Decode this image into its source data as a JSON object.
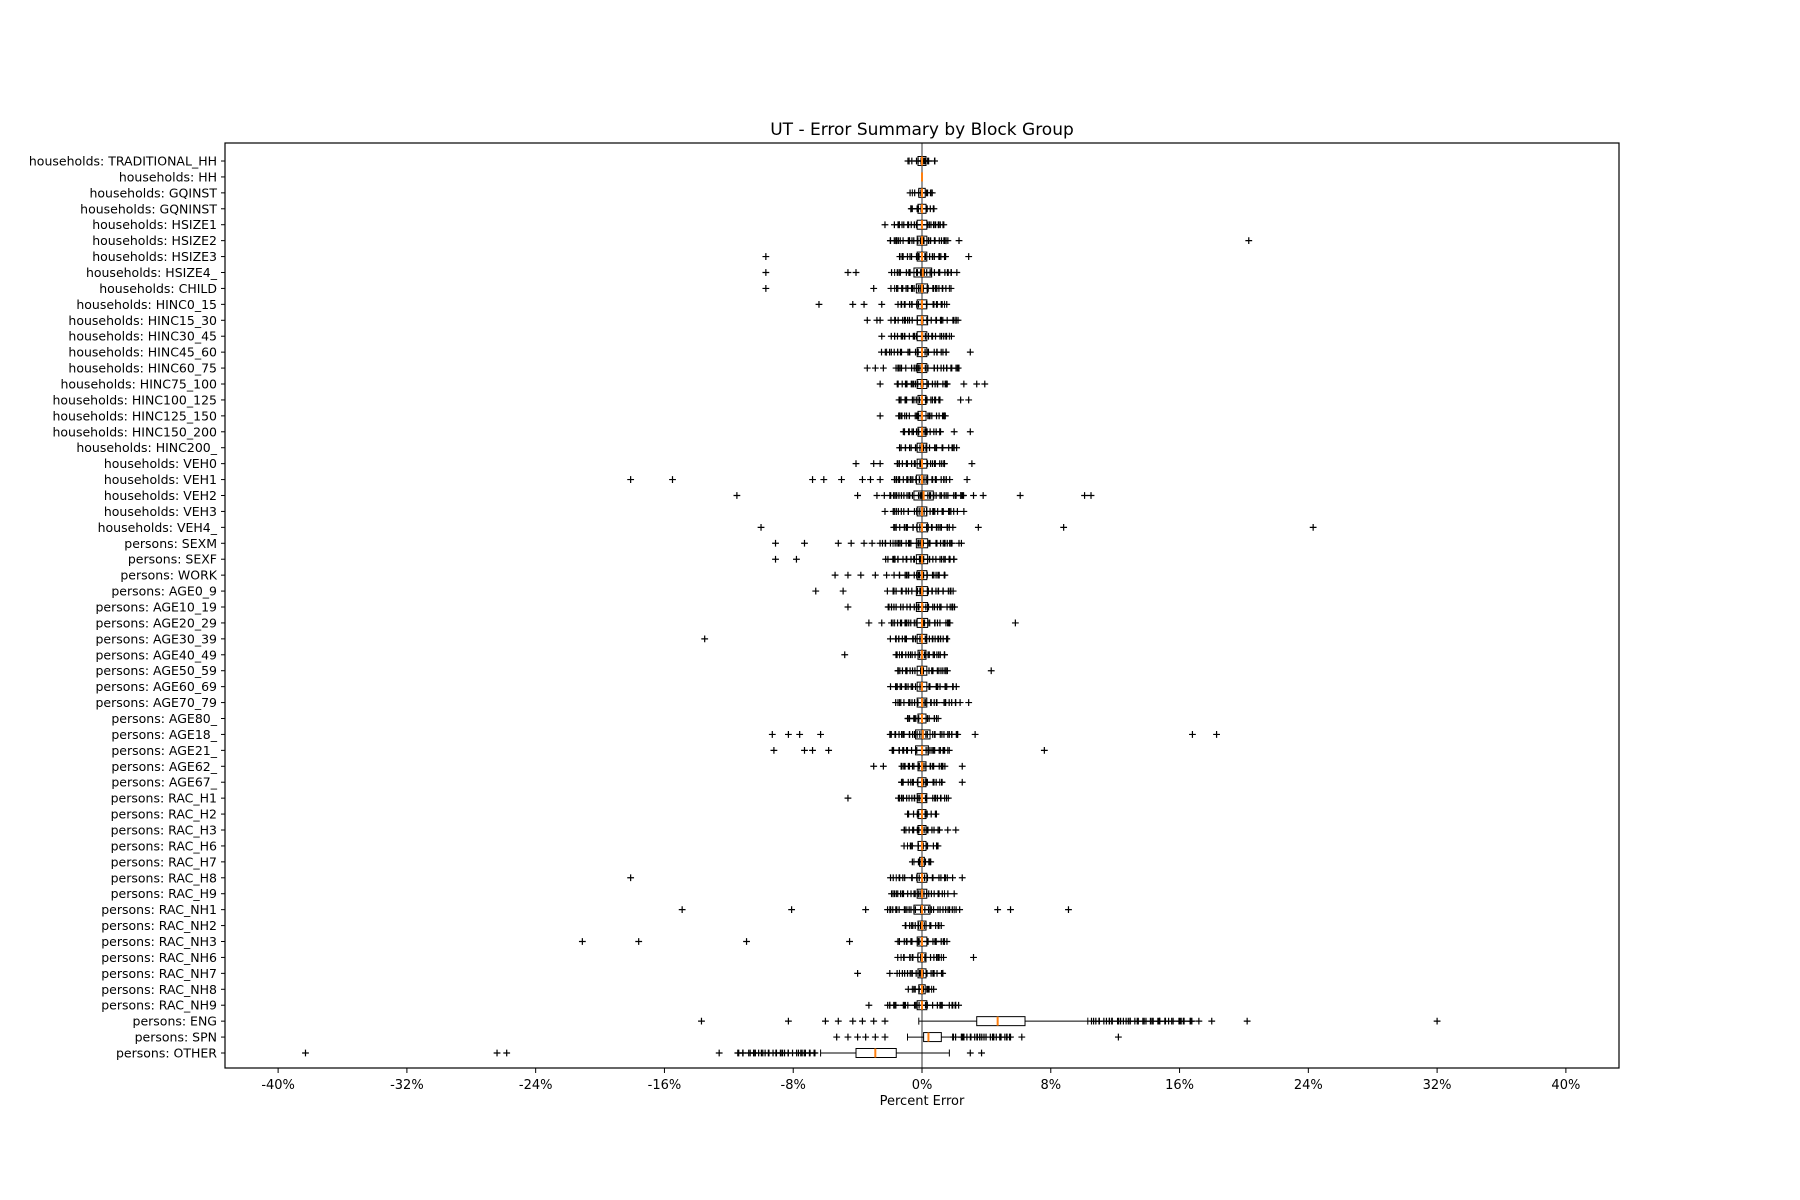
{
  "chart_data": {
    "type": "boxplot",
    "orientation": "horizontal",
    "title": "UT - Error Summary by Block Group",
    "xlabel": "Percent Error",
    "ylabel": "",
    "xlim": [
      -43.3,
      43.3
    ],
    "xticks": [
      -40,
      -32,
      -24,
      -16,
      -8,
      0,
      8,
      16,
      24,
      32,
      40
    ],
    "xtick_labels": [
      "-40%",
      "-32%",
      "-24%",
      "-16%",
      "-8%",
      "0%",
      "8%",
      "16%",
      "24%",
      "32%",
      "40%"
    ],
    "grid": false,
    "zero_line": 0,
    "colors": {
      "median": "#ff7f0e",
      "box": "#000000",
      "flier": "#000000",
      "zero_line": "#333333",
      "frame": "#000000"
    },
    "legend": null,
    "units": "percent error",
    "rows": [
      {
        "label": "households: TRADITIONAL_HH",
        "q1": -0.25,
        "med": 0,
        "q3": 0.25,
        "lo": -0.8,
        "hi": 0.8,
        "band": [
          -0.7,
          0.7,
          12
        ],
        "fliers": []
      },
      {
        "label": "households: HH",
        "q1": 0,
        "med": 0,
        "q3": 0,
        "lo": 0,
        "hi": 0,
        "band": null,
        "fliers": []
      },
      {
        "label": "households: GQINST",
        "q1": -0.2,
        "med": 0,
        "q3": 0.2,
        "lo": -0.6,
        "hi": 0.6,
        "band": [
          -0.6,
          0.6,
          9
        ],
        "fliers": []
      },
      {
        "label": "households: GQNINST",
        "q1": -0.25,
        "med": 0,
        "q3": 0.25,
        "lo": -0.7,
        "hi": 0.7,
        "band": [
          -0.7,
          0.7,
          10
        ],
        "fliers": []
      },
      {
        "label": "households: HSIZE1",
        "q1": -0.3,
        "med": 0,
        "q3": 0.3,
        "lo": -1.4,
        "hi": 1.3,
        "band": [
          -1.6,
          1.4,
          24
        ],
        "fliers": [
          -2.3
        ]
      },
      {
        "label": "households: HSIZE2",
        "q1": -0.3,
        "med": 0,
        "q3": 0.3,
        "lo": -1.6,
        "hi": 1.5,
        "band": [
          -2.0,
          1.6,
          28
        ],
        "fliers": [
          2.3,
          20.3
        ]
      },
      {
        "label": "households: HSIZE3",
        "q1": -0.3,
        "med": 0,
        "q3": 0.3,
        "lo": -1.4,
        "hi": 1.4,
        "band": [
          -1.5,
          1.5,
          22
        ],
        "fliers": [
          -9.7,
          2.9
        ]
      },
      {
        "label": "households: HSIZE4_",
        "q1": -0.5,
        "med": 0.05,
        "q3": 0.6,
        "lo": -1.7,
        "hi": 1.8,
        "band": [
          -1.8,
          2.0,
          24
        ],
        "fliers": [
          -9.7,
          -4.6,
          -4.1
        ]
      },
      {
        "label": "households: CHILD",
        "q1": -0.35,
        "med": 0,
        "q3": 0.35,
        "lo": -1.7,
        "hi": 1.7,
        "band": [
          -1.8,
          1.7,
          26
        ],
        "fliers": [
          -9.7,
          -3.0
        ]
      },
      {
        "label": "households: HINC0_15",
        "q1": -0.3,
        "med": 0,
        "q3": 0.3,
        "lo": -1.3,
        "hi": 1.4,
        "band": [
          -1.4,
          1.5,
          20
        ],
        "fliers": [
          -6.4,
          -4.3,
          -3.6,
          -2.5
        ]
      },
      {
        "label": "households: HINC15_30",
        "q1": -0.3,
        "med": 0,
        "q3": 0.35,
        "lo": -1.7,
        "hi": 2.1,
        "band": [
          -1.8,
          2.2,
          28
        ],
        "fliers": [
          -3.4,
          -2.8,
          -2.6
        ]
      },
      {
        "label": "households: HINC30_45",
        "q1": -0.3,
        "med": 0,
        "q3": 0.3,
        "lo": -1.7,
        "hi": 1.7,
        "band": [
          -1.8,
          1.8,
          26
        ],
        "fliers": [
          -2.5
        ]
      },
      {
        "label": "households: HINC45_60",
        "q1": -0.3,
        "med": 0,
        "q3": 0.3,
        "lo": -2.2,
        "hi": 1.5,
        "band": [
          -2.4,
          1.6,
          26
        ],
        "fliers": [
          3.0
        ]
      },
      {
        "label": "households: HINC60_75",
        "q1": -0.3,
        "med": 0,
        "q3": 0.3,
        "lo": -1.5,
        "hi": 2.3,
        "band": [
          -1.6,
          2.4,
          26
        ],
        "fliers": [
          -3.4,
          -2.9,
          -2.4
        ]
      },
      {
        "label": "households: HINC75_100",
        "q1": -0.3,
        "med": 0,
        "q3": 0.3,
        "lo": -1.5,
        "hi": 1.5,
        "band": [
          -1.6,
          1.6,
          24
        ],
        "fliers": [
          -2.6,
          2.6,
          3.4,
          3.9
        ]
      },
      {
        "label": "households: HINC100_125",
        "q1": -0.25,
        "med": 0,
        "q3": 0.25,
        "lo": -1.3,
        "hi": 1.1,
        "band": [
          -1.5,
          1.2,
          18
        ],
        "fliers": [
          2.4,
          2.9
        ]
      },
      {
        "label": "households: HINC125_150",
        "q1": -0.25,
        "med": 0,
        "q3": 0.25,
        "lo": -1.4,
        "hi": 1.4,
        "band": [
          -1.5,
          1.5,
          20
        ],
        "fliers": [
          -2.6
        ]
      },
      {
        "label": "households: HINC150_200",
        "q1": -0.25,
        "med": 0,
        "q3": 0.25,
        "lo": -1.1,
        "hi": 1.1,
        "band": [
          -1.2,
          1.2,
          16
        ],
        "fliers": [
          2.0,
          3.0
        ]
      },
      {
        "label": "households: HINC200_",
        "q1": -0.3,
        "med": 0,
        "q3": 0.3,
        "lo": -1.4,
        "hi": 2.0,
        "band": [
          -1.5,
          2.1,
          22
        ],
        "fliers": []
      },
      {
        "label": "households: VEH0",
        "q1": -0.3,
        "med": 0,
        "q3": 0.3,
        "lo": -1.4,
        "hi": 1.4,
        "band": [
          -1.5,
          1.5,
          20
        ],
        "fliers": [
          -4.1,
          -3.0,
          -2.6,
          3.1
        ]
      },
      {
        "label": "households: VEH1",
        "q1": -0.35,
        "med": 0,
        "q3": 0.35,
        "lo": -1.6,
        "hi": 1.5,
        "band": [
          -1.8,
          1.6,
          28
        ],
        "fliers": [
          -18.1,
          -15.5,
          -6.8,
          -6.1,
          -5.0,
          -3.7,
          -3.2,
          -2.6,
          2.8
        ]
      },
      {
        "label": "households: VEH2",
        "q1": -0.5,
        "med": 0.1,
        "q3": 0.7,
        "lo": -2.0,
        "hi": 2.4,
        "band": [
          -2.2,
          2.6,
          32
        ],
        "fliers": [
          -11.5,
          -4.0,
          -2.8,
          3.2,
          3.8,
          6.1,
          10.1,
          10.5
        ]
      },
      {
        "label": "households: VEH3",
        "q1": -0.3,
        "med": 0,
        "q3": 0.3,
        "lo": -1.6,
        "hi": 1.8,
        "band": [
          -1.8,
          1.9,
          26
        ],
        "fliers": [
          -2.3,
          2.2,
          2.6
        ]
      },
      {
        "label": "households: VEH4_",
        "q1": -0.3,
        "med": 0,
        "q3": 0.35,
        "lo": -1.6,
        "hi": 1.7,
        "band": [
          -1.7,
          1.8,
          24
        ],
        "fliers": [
          -10.0,
          3.5,
          8.8,
          24.3
        ]
      },
      {
        "label": "persons: SEXM",
        "q1": -0.35,
        "med": 0,
        "q3": 0.35,
        "lo": -1.8,
        "hi": 1.8,
        "band": [
          -2.6,
          2.3,
          32
        ],
        "fliers": [
          -9.1,
          -7.3,
          -5.2,
          -4.4,
          -3.6,
          -3.1
        ]
      },
      {
        "label": "persons: SEXF",
        "q1": -0.35,
        "med": 0,
        "q3": 0.35,
        "lo": -1.7,
        "hi": 1.7,
        "band": [
          -2.2,
          2.0,
          30
        ],
        "fliers": [
          -9.1,
          -7.8
        ]
      },
      {
        "label": "persons: WORK",
        "q1": -0.3,
        "med": 0,
        "q3": 0.3,
        "lo": -1.4,
        "hi": 1.4,
        "band": [
          -1.6,
          1.5,
          22
        ],
        "fliers": [
          -5.4,
          -4.6,
          -3.8,
          -2.9,
          -2.2
        ]
      },
      {
        "label": "persons: AGE0_9",
        "q1": -0.35,
        "med": 0,
        "q3": 0.35,
        "lo": -1.8,
        "hi": 1.8,
        "band": [
          -2.0,
          1.9,
          26
        ],
        "fliers": [
          -6.6,
          -4.9
        ]
      },
      {
        "label": "persons: AGE10_19",
        "q1": -0.35,
        "med": 0,
        "q3": 0.35,
        "lo": -1.9,
        "hi": 1.9,
        "band": [
          -2.1,
          2.1,
          28
        ],
        "fliers": [
          -4.6
        ]
      },
      {
        "label": "persons: AGE20_29",
        "q1": -0.3,
        "med": 0,
        "q3": 0.35,
        "lo": -1.7,
        "hi": 1.7,
        "band": [
          -1.9,
          1.8,
          26
        ],
        "fliers": [
          -3.3,
          -2.5,
          5.8
        ]
      },
      {
        "label": "persons: AGE30_39",
        "q1": -0.3,
        "med": 0,
        "q3": 0.3,
        "lo": -1.6,
        "hi": 1.6,
        "band": [
          -1.8,
          1.7,
          26
        ],
        "fliers": [
          -13.5
        ]
      },
      {
        "label": "persons: AGE40_49",
        "q1": -0.25,
        "med": 0,
        "q3": 0.25,
        "lo": -1.4,
        "hi": 1.4,
        "band": [
          -1.6,
          1.5,
          22
        ],
        "fliers": [
          -4.8
        ]
      },
      {
        "label": "persons: AGE50_59",
        "q1": -0.3,
        "med": 0,
        "q3": 0.3,
        "lo": -1.5,
        "hi": 1.5,
        "band": [
          -1.6,
          1.6,
          24
        ],
        "fliers": [
          4.3
        ]
      },
      {
        "label": "persons: AGE60_69",
        "q1": -0.3,
        "med": 0,
        "q3": 0.3,
        "lo": -1.6,
        "hi": 1.9,
        "band": [
          -1.8,
          2.0,
          26
        ],
        "fliers": []
      },
      {
        "label": "persons: AGE70_79",
        "q1": -0.3,
        "med": 0,
        "q3": 0.3,
        "lo": -1.4,
        "hi": 2.1,
        "band": [
          -1.5,
          2.2,
          24
        ],
        "fliers": [
          2.9
        ]
      },
      {
        "label": "persons: AGE80_",
        "q1": -0.25,
        "med": 0,
        "q3": 0.25,
        "lo": -0.9,
        "hi": 0.9,
        "band": [
          -1.0,
          1.0,
          14
        ],
        "fliers": []
      },
      {
        "label": "persons: AGE18_",
        "q1": -0.4,
        "med": 0.05,
        "q3": 0.5,
        "lo": -2.0,
        "hi": 2.2,
        "band": [
          -2.1,
          2.3,
          30
        ],
        "fliers": [
          -9.3,
          -8.3,
          -7.6,
          -6.3,
          3.3,
          16.8,
          18.3
        ]
      },
      {
        "label": "persons: AGE21_",
        "q1": -0.4,
        "med": 0,
        "q3": 0.4,
        "lo": -1.8,
        "hi": 1.6,
        "band": [
          -1.9,
          1.7,
          26
        ],
        "fliers": [
          -9.2,
          -7.3,
          -6.8,
          -5.8,
          7.6
        ]
      },
      {
        "label": "persons: AGE62_",
        "q1": -0.25,
        "med": 0,
        "q3": 0.25,
        "lo": -1.3,
        "hi": 1.3,
        "band": [
          -1.4,
          1.4,
          20
        ],
        "fliers": [
          -3.0,
          -2.4,
          2.5
        ]
      },
      {
        "label": "persons: AGE67_",
        "q1": -0.25,
        "med": 0,
        "q3": 0.25,
        "lo": -1.2,
        "hi": 1.1,
        "band": [
          -1.3,
          1.2,
          18
        ],
        "fliers": [
          2.5
        ]
      },
      {
        "label": "persons: RAC_H1",
        "q1": -0.3,
        "med": 0,
        "q3": 0.3,
        "lo": -1.4,
        "hi": 1.4,
        "band": [
          -1.5,
          1.5,
          22
        ],
        "fliers": [
          -4.6
        ]
      },
      {
        "label": "persons: RAC_H2",
        "q1": -0.25,
        "med": 0,
        "q3": 0.25,
        "lo": -0.9,
        "hi": 0.9,
        "band": [
          -1.0,
          1.0,
          12
        ],
        "fliers": []
      },
      {
        "label": "persons: RAC_H3",
        "q1": -0.25,
        "med": 0,
        "q3": 0.25,
        "lo": -1.0,
        "hi": 1.0,
        "band": [
          -1.1,
          1.1,
          14
        ],
        "fliers": [
          1.6,
          2.1
        ]
      },
      {
        "label": "persons: RAC_H6",
        "q1": -0.25,
        "med": 0,
        "q3": 0.25,
        "lo": -0.9,
        "hi": 0.9,
        "band": [
          -1.0,
          1.0,
          12
        ],
        "fliers": []
      },
      {
        "label": "persons: RAC_H7",
        "q1": -0.15,
        "med": 0,
        "q3": 0.15,
        "lo": -0.5,
        "hi": 0.5,
        "band": [
          -0.5,
          0.5,
          8
        ],
        "fliers": []
      },
      {
        "label": "persons: RAC_H8",
        "q1": -0.3,
        "med": 0,
        "q3": 0.3,
        "lo": -1.6,
        "hi": 1.4,
        "band": [
          -1.8,
          1.5,
          20
        ],
        "fliers": [
          -18.1,
          1.9,
          2.5
        ]
      },
      {
        "label": "persons: RAC_H9",
        "q1": -0.3,
        "med": 0,
        "q3": 0.3,
        "lo": -1.8,
        "hi": 1.4,
        "band": [
          -2.0,
          1.5,
          22
        ],
        "fliers": [
          2.0
        ]
      },
      {
        "label": "persons: RAC_NH1",
        "q1": -0.5,
        "med": 0,
        "q3": 0.5,
        "lo": -2.0,
        "hi": 2.0,
        "band": [
          -2.2,
          2.2,
          28
        ],
        "fliers": [
          -14.9,
          -8.1,
          -3.5,
          4.7,
          5.5,
          9.1
        ]
      },
      {
        "label": "persons: RAC_NH2",
        "q1": -0.25,
        "med": 0,
        "q3": 0.25,
        "lo": -1.0,
        "hi": 1.0,
        "band": [
          -1.1,
          1.1,
          14
        ],
        "fliers": []
      },
      {
        "label": "persons: RAC_NH3",
        "q1": -0.3,
        "med": 0,
        "q3": 0.3,
        "lo": -1.4,
        "hi": 1.4,
        "band": [
          -1.5,
          1.5,
          20
        ],
        "fliers": [
          -21.1,
          -17.6,
          -10.9,
          -4.5
        ]
      },
      {
        "label": "persons: RAC_NH6",
        "q1": -0.25,
        "med": 0,
        "q3": 0.25,
        "lo": -1.3,
        "hi": 1.2,
        "band": [
          -1.4,
          1.3,
          18
        ],
        "fliers": [
          3.2
        ]
      },
      {
        "label": "persons: RAC_NH7",
        "q1": -0.25,
        "med": 0,
        "q3": 0.25,
        "lo": -1.4,
        "hi": 1.3,
        "band": [
          -1.5,
          1.4,
          18
        ],
        "fliers": [
          -4.0,
          -2.0
        ]
      },
      {
        "label": "persons: RAC_NH8",
        "q1": -0.2,
        "med": 0,
        "q3": 0.2,
        "lo": -0.6,
        "hi": 0.6,
        "band": [
          -0.7,
          0.7,
          10
        ],
        "fliers": []
      },
      {
        "label": "persons: RAC_NH9",
        "q1": -0.3,
        "med": 0,
        "q3": 0.3,
        "lo": -2.0,
        "hi": 2.1,
        "band": [
          -2.2,
          2.3,
          26
        ],
        "fliers": [
          -3.3
        ]
      },
      {
        "label": "persons: ENG",
        "q1": 3.4,
        "med": 4.7,
        "q3": 6.4,
        "lo": -0.2,
        "hi": 10.3,
        "band": [
          10.5,
          16.8,
          45
        ],
        "fliers": [
          -13.7,
          -8.3,
          -6.0,
          -5.2,
          -4.3,
          -3.7,
          -3.0,
          -2.3,
          17.2,
          18.0,
          20.2,
          32.0
        ]
      },
      {
        "label": "persons: SPN",
        "q1": 0.1,
        "med": 0.4,
        "q3": 1.2,
        "lo": -0.9,
        "hi": 1.9,
        "band": [
          2.1,
          5.6,
          30
        ],
        "fliers": [
          -5.3,
          -4.6,
          -4.0,
          -3.5,
          -2.9,
          -2.3,
          6.2,
          12.2
        ]
      },
      {
        "label": "persons: OTHER",
        "q1": -4.1,
        "med": -2.9,
        "q3": -1.6,
        "lo": -6.3,
        "hi": 1.7,
        "band": [
          -11.4,
          -6.6,
          35
        ],
        "fliers": [
          -38.3,
          -26.4,
          -25.8,
          -12.6,
          3.0,
          3.7
        ]
      }
    ]
  },
  "layout_note": "horizontal boxplots, tick labels on left, x axis ticks as percents, orange medians, plus-sign outliers, thin vertical zero line"
}
